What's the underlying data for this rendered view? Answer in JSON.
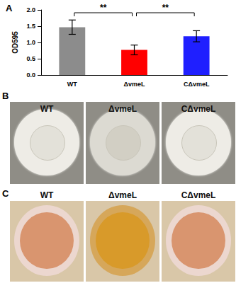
{
  "chart_data": {
    "type": "bar",
    "title": "A",
    "categories": [
      "WT",
      "ΔvmeL",
      "CΔvmeL"
    ],
    "values": [
      1.47,
      0.77,
      1.19
    ],
    "errors": [
      0.22,
      0.15,
      0.17
    ],
    "colors": [
      "#8c8c8c",
      "#ff0000",
      "#1f1fff"
    ],
    "y_label": "OD595",
    "ylim": [
      0,
      2
    ],
    "yticks": [
      {
        "value": 0,
        "label": "0.0"
      },
      {
        "value": 0.5,
        "label": "0.5"
      },
      {
        "value": 1,
        "label": "1.0"
      },
      {
        "value": 1.5,
        "label": "1.5"
      },
      {
        "value": 2,
        "label": "2.0"
      }
    ],
    "grid": false,
    "annotations": [
      {
        "text": "**",
        "from": 0,
        "to": 1
      },
      {
        "text": "**",
        "from": 1,
        "to": 2
      }
    ]
  },
  "panels": [
    {
      "label": "B",
      "captions": [
        "WT",
        "ΔvmeL",
        "CΔvmeL"
      ]
    },
    {
      "label": "C",
      "captions": [
        "WT",
        "ΔvmeL",
        "CΔvmeL"
      ]
    }
  ]
}
